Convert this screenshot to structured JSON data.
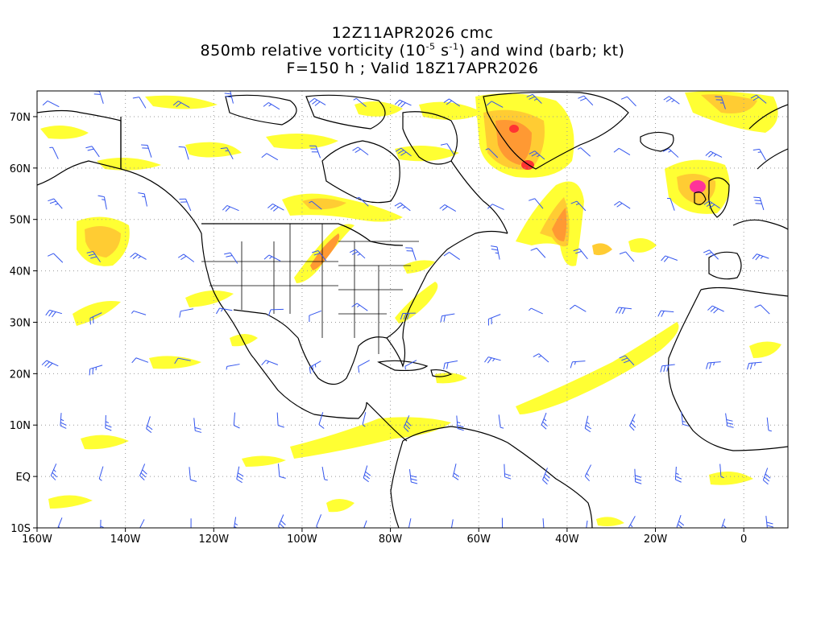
{
  "title": {
    "line1": "12Z11APR2026 cmc",
    "line2_pre": "850mb relative vorticity (10",
    "line2_exp1": "-5",
    "line2_mid": " s",
    "line2_exp2": "-1",
    "line2_post": ") and wind (barb; kt)",
    "line3": "F=150 h ; Valid 18Z17APR2026"
  },
  "axes": {
    "lon_labels": [
      "160W",
      "140W",
      "120W",
      "100W",
      "80W",
      "60W",
      "40W",
      "20W",
      "0"
    ],
    "lat_labels": [
      "70N",
      "60N",
      "50N",
      "40N",
      "30N",
      "20N",
      "10N",
      "EQ",
      "10S"
    ]
  },
  "colors": {
    "vort_light": "#ffff33",
    "vort_mid": "#ffcc33",
    "vort_orange": "#ff9933",
    "vort_red": "#ff3333",
    "vort_magenta": "#ff3399",
    "barb": "#3355ee",
    "coast": "#000000",
    "grid": "#999999"
  },
  "extent": {
    "lon_min": -160,
    "lon_max": 10,
    "lat_min": -10,
    "lat_max": 75
  }
}
